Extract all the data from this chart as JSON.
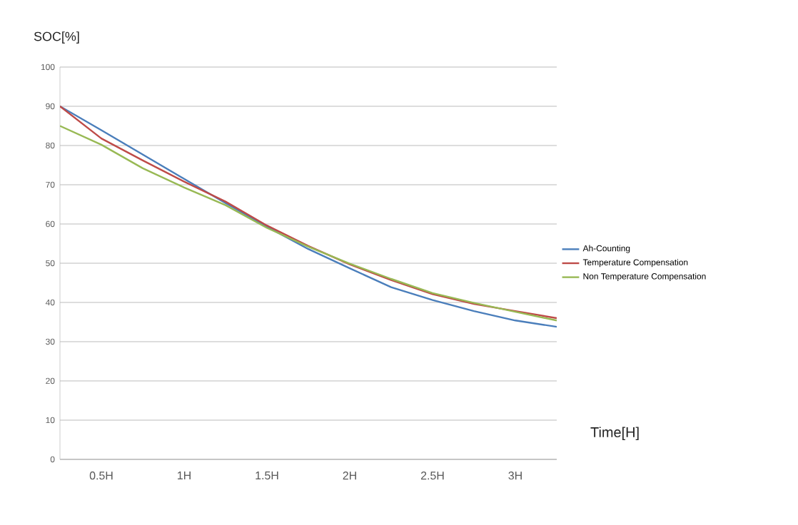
{
  "chart_data": {
    "type": "line",
    "ylabel": "SOC[%]",
    "xlabel": "Time[H]",
    "x": [
      0.25,
      0.5,
      0.75,
      1.0,
      1.25,
      1.5,
      1.75,
      2.0,
      2.25,
      2.5,
      2.75,
      3.0,
      3.25
    ],
    "series": [
      {
        "name": "Ah-Counting",
        "color": "#4a7ebb",
        "values": [
          90,
          83.9,
          77.7,
          71.5,
          65.3,
          59.3,
          53.6,
          48.7,
          43.9,
          40.6,
          37.8,
          35.4,
          33.8
        ]
      },
      {
        "name": "Temperature Compensation",
        "color": "#be4b48",
        "values": [
          90,
          81.8,
          76.2,
          70.8,
          65.7,
          59.6,
          54.4,
          49.7,
          45.7,
          42.1,
          39.6,
          37.8,
          36
        ]
      },
      {
        "name": "Non Temperature Compensation",
        "color": "#98b954",
        "values": [
          85,
          80.2,
          74.2,
          69.3,
          64.8,
          59,
          54.2,
          49.9,
          46,
          42.4,
          39.9,
          37.6,
          35.4
        ]
      }
    ],
    "xlim": [
      0.25,
      3.25
    ],
    "ylim": [
      0,
      100
    ],
    "xticks": [
      {
        "value": 0.5,
        "label": "0.5H"
      },
      {
        "value": 1,
        "label": "1H"
      },
      {
        "value": 1.5,
        "label": "1.5H"
      },
      {
        "value": 2,
        "label": "2H"
      },
      {
        "value": 2.5,
        "label": "2.5H"
      },
      {
        "value": 3,
        "label": "3H"
      }
    ],
    "yticks": [
      0,
      10,
      20,
      30,
      40,
      50,
      60,
      70,
      80,
      90,
      100
    ],
    "grid": "y",
    "legend": "right",
    "marker": "none",
    "line_style": "solid"
  }
}
